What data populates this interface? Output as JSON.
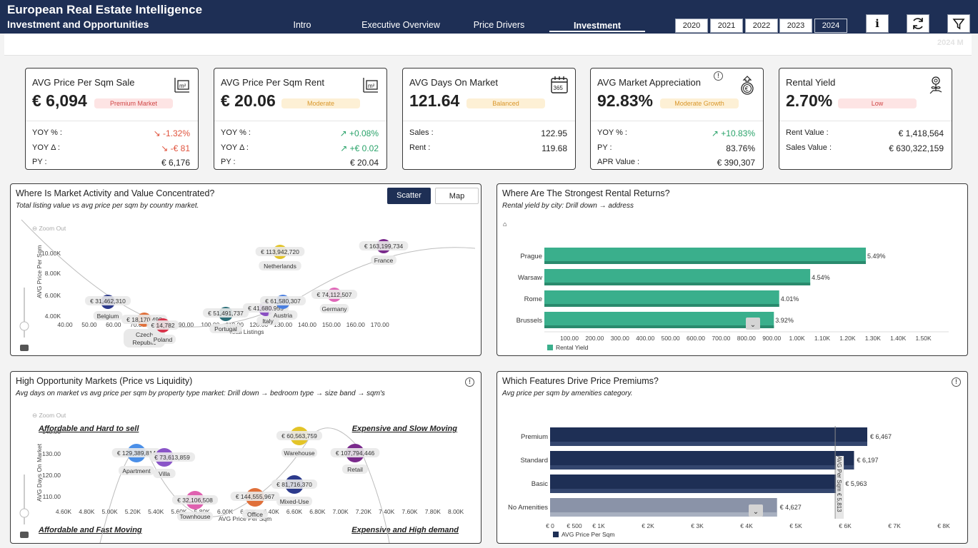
{
  "header": {
    "title": "European Real Estate Intelligence",
    "subtitle": "Investment and Opportunities",
    "nav": [
      "Intro",
      "Executive Overview",
      "Price Drivers",
      "Investment"
    ],
    "years": [
      "2020",
      "2021",
      "2022",
      "2023",
      "2024"
    ],
    "active_year": "2024",
    "info_label": "i",
    "ghost_text": "2024 M"
  },
  "kpis": {
    "sale": {
      "title": "AVG Price Per Sqm Sale",
      "value": "€ 6,094",
      "badge": "Premium Market",
      "rows": [
        {
          "label": "YOY % :",
          "value": "↘ -1.32%"
        },
        {
          "label": "YOY Δ :",
          "value": "↘ -€ 81"
        },
        {
          "label": "PY :",
          "value": "€ 6,176"
        }
      ]
    },
    "rent": {
      "title": "AVG Price Per Sqm Rent",
      "value": "€ 20.06",
      "badge": "Moderate",
      "rows": [
        {
          "label": "YOY % :",
          "value": "↗ +0.08%"
        },
        {
          "label": "YOY Δ :",
          "value": "↗ +€ 0.02"
        },
        {
          "label": "PY :",
          "value": "€ 20.04"
        }
      ]
    },
    "days": {
      "title": "AVG Days On Market",
      "value": "121.64",
      "badge": "Balanced",
      "icon_text": "365",
      "rows": [
        {
          "label": "Sales :",
          "value": "122.95"
        },
        {
          "label": "Rent :",
          "value": "119.68"
        }
      ]
    },
    "appreciation": {
      "title": "AVG Market Appreciation",
      "value": "92.83%",
      "badge": "Moderate Growth",
      "info": "!",
      "rows": [
        {
          "label": "YOY % :",
          "value": "↗ +10.83%"
        },
        {
          "label": "PY :",
          "value": "83.76%"
        },
        {
          "label": "APR Value :",
          "value": "€ 390,307"
        }
      ]
    },
    "yield": {
      "title": "Rental Yield",
      "value": "2.70%",
      "badge": "Low",
      "rows": [
        {
          "label": "Rent Value :",
          "value": "€ 1,418,564"
        },
        {
          "label": "Sales Value :",
          "value": "€ 630,322,159"
        }
      ]
    }
  },
  "scatter1": {
    "title": "Where Is Market Activity and Value Concentrated?",
    "subtitle": "Total listing value vs avg price per sqm by country market.",
    "toggle_scatter": "Scatter",
    "toggle_map": "Map",
    "zoom_out": "Zoom Out",
    "chart_data": {
      "type": "scatter",
      "xlabel": "Total Listings",
      "ylabel": "AVG Price Per Sqm",
      "xticks": [
        "40.00",
        "50.00",
        "60.00",
        "70.00",
        "80.00",
        "90.00",
        "100.00",
        "110.00",
        "120.00",
        "130.00",
        "140.00",
        "150.00",
        "160.00",
        "170.00"
      ],
      "yticks": [
        "4.00K",
        "6.00K",
        "8.00K",
        "10.00K"
      ],
      "points": [
        {
          "name": "Belgium",
          "value": "€ 31,462,310",
          "color": "#2c3a8c"
        },
        {
          "name": "Czech Republic",
          "value": "€ 18,170,498",
          "color": "#e0703a"
        },
        {
          "name": "Poland",
          "value": "€ 14,782",
          "color": "#d9334a"
        },
        {
          "name": "Portugal",
          "value": "€ 51,491,737",
          "color": "#2b6e78"
        },
        {
          "name": "Italy",
          "value": "€ 41,680,955",
          "color": "#8a4fc2"
        },
        {
          "name": "Austria",
          "value": "€ 61,580,307",
          "color": "#4a7fe0"
        },
        {
          "name": "Germany",
          "value": "€ 74,112,507",
          "color": "#e066b8"
        },
        {
          "name": "Netherlands",
          "value": "€ 113,942,720",
          "color": "#e3c428"
        },
        {
          "name": "France",
          "value": "€ 163,199,734",
          "color": "#7a2a8c"
        }
      ]
    }
  },
  "bar_rent": {
    "title": "Where Are The Strongest Rental Returns?",
    "subtitle": "Rental yield by city: Drill down → address",
    "chart_data": {
      "type": "bar",
      "categories": [
        "Prague",
        "Warsaw",
        "Rome",
        "Brussels"
      ],
      "values": [
        5.49,
        4.54,
        4.01,
        3.92
      ],
      "labels": [
        "5.49%",
        "4.54%",
        "4.01%",
        "3.92%"
      ],
      "xticks": [
        "100.00",
        "200.00",
        "300.00",
        "400.00",
        "500.00",
        "600.00",
        "700.00",
        "800.00",
        "900.00",
        "1.00K",
        "1.10K",
        "1.20K",
        "1.30K",
        "1.40K",
        "1.50K"
      ],
      "legend": "Rental Yield",
      "color": "#3aaf8c"
    }
  },
  "scatter2": {
    "title": "High Opportunity Markets (Price vs Liquidity)",
    "subtitle": "Avg days on market vs avg price per sqm by property type market: Drill down → bedroom type → size band → sqm's",
    "zoom_out": "Zoom Out",
    "quadrants": [
      "Affordable and Hard to sell",
      "Expensive and Slow Moving",
      "Affordable and Fast Moving",
      "Expensive and High demand"
    ],
    "chart_data": {
      "type": "scatter",
      "xlabel": "AVG Price Per Sqm",
      "ylabel": "AVG Days On Market",
      "xticks": [
        "4.60K",
        "4.80K",
        "5.00K",
        "5.20K",
        "5.40K",
        "5.60K",
        "5.80K",
        "6.00K",
        "6.20K",
        "6.40K",
        "6.60K",
        "6.80K",
        "7.00K",
        "7.20K",
        "7.40K",
        "7.60K",
        "7.80K",
        "8.00K"
      ],
      "yticks": [
        "110.00",
        "120.00",
        "130.00",
        "140.00"
      ],
      "points": [
        {
          "name": "Apartment",
          "value": "€ 129,389,814",
          "color": "#4a8fe8"
        },
        {
          "name": "Villa",
          "value": "€ 73,613,859",
          "color": "#8a55c8"
        },
        {
          "name": "Townhouse",
          "value": "€ 32,106,508",
          "color": "#e060b0"
        },
        {
          "name": "Office",
          "value": "€ 144,555,967",
          "color": "#e0703a"
        },
        {
          "name": "Mixed-Use",
          "value": "€ 81,716,370",
          "color": "#2c3a8c"
        },
        {
          "name": "Warehouse",
          "value": "€ 60,563,759",
          "color": "#e3c428"
        },
        {
          "name": "Retail",
          "value": "€ 107,794,446",
          "color": "#7a2a8c"
        }
      ]
    }
  },
  "bar_amen": {
    "title": "Which Features Drive Price Premiums?",
    "subtitle": "Avg price per sqm by amenities category.",
    "chart_data": {
      "type": "bar",
      "categories": [
        "Premium",
        "Standard",
        "Basic",
        "No Amenities"
      ],
      "values": [
        6467,
        6197,
        5963,
        4627
      ],
      "labels": [
        "€ 6,467",
        "€ 6,197",
        "€ 5,963",
        "€ 4,627"
      ],
      "xticks": [
        "€ 0",
        "€ 500",
        "€ 1K",
        "€ 2K",
        "€ 3K",
        "€ 4K",
        "€ 5K",
        "€ 6K",
        "€ 7K",
        "€ 8K"
      ],
      "legend": "AVG Price Per Sqm",
      "refline_label": "AVG Per Sqm € 5,813",
      "refline_value": 5813
    }
  }
}
